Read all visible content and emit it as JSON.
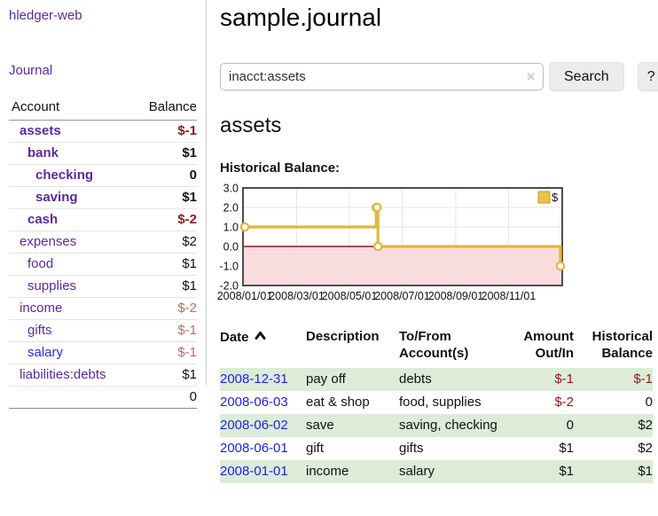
{
  "sidebar": {
    "brand": "hledger-web",
    "nav": {
      "journal_label": "Journal"
    },
    "accounts_table": {
      "headers": {
        "account": "Account",
        "balance": "Balance"
      },
      "rows": [
        {
          "name": "assets",
          "balance": "$-1",
          "indent": 1,
          "bold": true,
          "name_style": "purple",
          "balance_style": "neg"
        },
        {
          "name": "bank",
          "balance": "$1",
          "indent": 2,
          "bold": true,
          "name_style": "purple",
          "balance_style": "pos"
        },
        {
          "name": "checking",
          "balance": "0",
          "indent": 3,
          "bold": true,
          "name_style": "purple",
          "balance_style": "pos"
        },
        {
          "name": "saving",
          "balance": "$1",
          "indent": 3,
          "bold": true,
          "name_style": "purple",
          "balance_style": "pos"
        },
        {
          "name": "cash",
          "balance": "$-2",
          "indent": 2,
          "bold": true,
          "name_style": "purple",
          "balance_style": "neg"
        },
        {
          "name": "expenses",
          "balance": "$2",
          "indent": 1,
          "bold": false,
          "name_style": "purple",
          "balance_style": "pos"
        },
        {
          "name": "food",
          "balance": "$1",
          "indent": 2,
          "bold": false,
          "name_style": "purple",
          "balance_style": "pos"
        },
        {
          "name": "supplies",
          "balance": "$1",
          "indent": 2,
          "bold": false,
          "name_style": "purple",
          "balance_style": "pos"
        },
        {
          "name": "income",
          "balance": "$-2",
          "indent": 1,
          "bold": false,
          "name_style": "purple",
          "balance_style": "neg-pale"
        },
        {
          "name": "gifts",
          "balance": "$-1",
          "indent": 2,
          "bold": false,
          "name_style": "purple",
          "balance_style": "neg-pale"
        },
        {
          "name": "salary",
          "balance": "$-1",
          "indent": 2,
          "bold": false,
          "name_style": "blue",
          "balance_style": "neg-pale"
        },
        {
          "name": "liabilities:debts",
          "balance": "$1",
          "indent": 1,
          "bold": false,
          "name_style": "purple",
          "balance_style": "pos"
        }
      ],
      "total": "0"
    }
  },
  "main": {
    "title": "sample.journal",
    "search": {
      "value": "inacct:assets",
      "clear_glyph": "✕",
      "button_label": "Search",
      "help_label": "?"
    },
    "account_heading": "assets",
    "chart_label": "Historical Balance:"
  },
  "chart_data": {
    "type": "line",
    "step": true,
    "title": "Historical Balance",
    "series": [
      {
        "name": "$",
        "points": [
          [
            "2008-01-01",
            1
          ],
          [
            "2008-06-01",
            2
          ],
          [
            "2008-06-02",
            2
          ],
          [
            "2008-06-03",
            0
          ],
          [
            "2008-12-31",
            -1
          ]
        ]
      }
    ],
    "x_ticks": [
      "2008/01/01",
      "2008/03/01",
      "2008/05/01",
      "2008/07/01",
      "2008/09/01",
      "2008/11/01"
    ],
    "y_ticks": [
      "3.0",
      "2.0",
      "1.0",
      "0.0",
      "-1.0",
      "-2.0"
    ],
    "ylim": [
      -2,
      3
    ],
    "xlim": [
      "2008-01-01",
      "2008-12-31"
    ],
    "grid": true,
    "legend": {
      "position": "top-right",
      "entries": [
        {
          "label": "$",
          "color": "#e9c24a"
        }
      ]
    },
    "line_color": "#e2b53e",
    "negative_region_fill": "#fadcdd",
    "zero_line_color": "#8b1a1a"
  },
  "register": {
    "headers": {
      "date": "Date",
      "description": "Description",
      "accounts_line1": "To/From",
      "accounts_line2": "Account(s)",
      "amount_line1": "Amount",
      "amount_line2": "Out/In",
      "balance_line1": "Historical",
      "balance_line2": "Balance"
    },
    "rows": [
      {
        "date": "2008-12-31",
        "description": "pay off",
        "accounts": "debts",
        "amount": "$-1",
        "balance": "$-1",
        "amount_neg": true,
        "balance_neg": true,
        "stripe": true
      },
      {
        "date": "2008-06-03",
        "description": "eat & shop",
        "accounts": "food, supplies",
        "amount": "$-2",
        "balance": "0",
        "amount_neg": true,
        "balance_neg": false,
        "stripe": false
      },
      {
        "date": "2008-06-02",
        "description": "save",
        "accounts": "saving, checking",
        "amount": "0",
        "balance": "$2",
        "amount_neg": false,
        "balance_neg": false,
        "stripe": true
      },
      {
        "date": "2008-06-01",
        "description": "gift",
        "accounts": "gifts",
        "amount": "$1",
        "balance": "$2",
        "amount_neg": false,
        "balance_neg": false,
        "stripe": false
      },
      {
        "date": "2008-01-01",
        "description": "income",
        "accounts": "salary",
        "amount": "$1",
        "balance": "$1",
        "amount_neg": false,
        "balance_neg": false,
        "stripe": true
      }
    ]
  },
  "colors": {
    "link_purple": "#5b2a9b",
    "link_blue": "#2222e0",
    "negative_red": "#8c1a1c",
    "negative_pale_red": "#bb6a6a",
    "row_stripe_green": "#dcecd8",
    "chart_line_yellow": "#e2b53e",
    "chart_negative_fill": "#fadcdd",
    "chart_zero_line": "#8b1a1a"
  }
}
